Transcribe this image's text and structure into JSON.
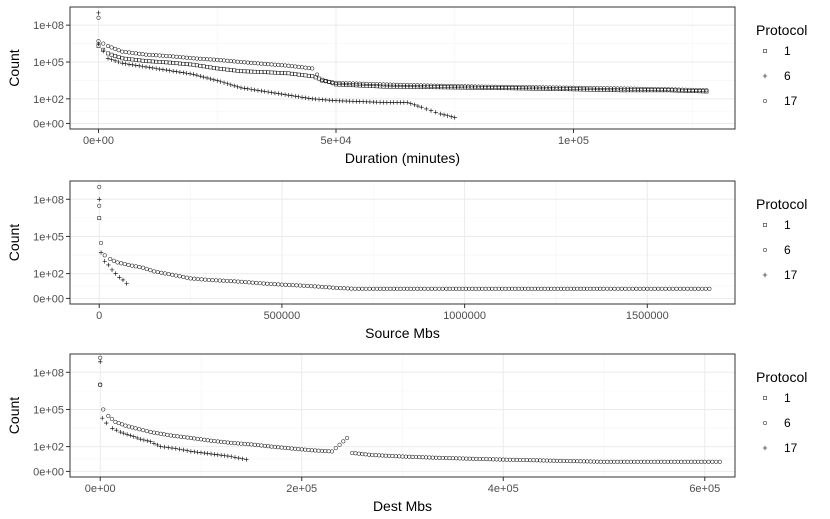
{
  "chart_data": [
    {
      "type": "scatter",
      "xlabel": "Duration (minutes)",
      "ylabel": "Count",
      "y_scale": "pseudo-log",
      "xlim": [
        -6000,
        134000
      ],
      "x_ticks": [
        0,
        50000,
        100000
      ],
      "x_tick_labels": [
        "0e+00",
        "5e+04",
        "1e+05"
      ],
      "y_ticks": [
        0,
        100,
        100000,
        100000000
      ],
      "y_tick_labels": [
        "0e+00",
        "1e+02",
        "1e+05",
        "1e+08"
      ],
      "grid": true,
      "legend": {
        "title": "Protocol",
        "placement": "right",
        "entries": [
          "1",
          "6",
          "17"
        ],
        "shapes": [
          "square",
          "plus",
          "circle"
        ]
      },
      "series": [
        {
          "name": "1",
          "shape": "square",
          "points": [
            [
              0,
              2000000
            ],
            [
              2000,
              500000
            ],
            [
              5000,
              200000
            ],
            [
              10000,
              120000
            ],
            [
              15000,
              90000
            ],
            [
              20000,
              60000
            ],
            [
              25000,
              30000
            ],
            [
              30000,
              18000
            ],
            [
              35000,
              15000
            ],
            [
              40000,
              12000
            ],
            [
              45000,
              7000
            ],
            [
              50000,
              1500
            ],
            [
              60000,
              1000
            ],
            [
              70000,
              900
            ],
            [
              80000,
              800
            ],
            [
              90000,
              700
            ],
            [
              100000,
              600
            ],
            [
              110000,
              500
            ],
            [
              120000,
              500
            ],
            [
              128000,
              400
            ]
          ]
        },
        {
          "name": "6",
          "shape": "plus",
          "points": [
            [
              0,
              1000000000
            ],
            [
              0,
              3000000
            ],
            [
              2000,
              200000
            ],
            [
              5000,
              80000
            ],
            [
              10000,
              40000
            ],
            [
              15000,
              20000
            ],
            [
              20000,
              10000
            ],
            [
              25000,
              3000
            ],
            [
              30000,
              800
            ],
            [
              35000,
              400
            ],
            [
              40000,
              200
            ],
            [
              45000,
              100
            ],
            [
              50000,
              70
            ],
            [
              55000,
              60
            ],
            [
              60000,
              50
            ],
            [
              65000,
              50
            ],
            [
              68000,
              20
            ],
            [
              70000,
              10
            ],
            [
              72000,
              5
            ],
            [
              75000,
              2
            ]
          ]
        },
        {
          "name": "17",
          "shape": "circle",
          "points": [
            [
              0,
              400000000
            ],
            [
              0,
              5000000
            ],
            [
              2000,
              2000000
            ],
            [
              5000,
              700000
            ],
            [
              10000,
              400000
            ],
            [
              15000,
              300000
            ],
            [
              20000,
              200000
            ],
            [
              25000,
              150000
            ],
            [
              30000,
              100000
            ],
            [
              35000,
              70000
            ],
            [
              40000,
              50000
            ],
            [
              45000,
              30000
            ],
            [
              47000,
              3000
            ],
            [
              50000,
              2000
            ],
            [
              60000,
              1500
            ],
            [
              70000,
              1200
            ],
            [
              80000,
              1000
            ],
            [
              90000,
              900
            ],
            [
              100000,
              800
            ],
            [
              110000,
              700
            ],
            [
              120000,
              600
            ],
            [
              128000,
              500
            ]
          ]
        }
      ]
    },
    {
      "type": "scatter",
      "xlabel": "Source Mbs",
      "ylabel": "Count",
      "y_scale": "pseudo-log",
      "xlim": [
        -80000,
        1740000
      ],
      "x_ticks": [
        0,
        500000,
        1000000,
        1500000
      ],
      "x_tick_labels": [
        "0",
        "500000",
        "1000000",
        "1500000"
      ],
      "y_ticks": [
        0,
        100,
        100000,
        100000000
      ],
      "y_tick_labels": [
        "0e+00",
        "1e+02",
        "1e+05",
        "1e+08"
      ],
      "grid": true,
      "legend": {
        "title": "Protocol",
        "placement": "right",
        "entries": [
          "1",
          "6",
          "17"
        ],
        "shapes": [
          "square",
          "circle",
          "plus"
        ]
      },
      "series": [
        {
          "name": "1",
          "shape": "square",
          "points": [
            [
              0,
              3000000
            ]
          ]
        },
        {
          "name": "6",
          "shape": "circle",
          "points": [
            [
              0,
              1000000000
            ],
            [
              0,
              30000000
            ],
            [
              5000,
              30000
            ],
            [
              15000,
              3000
            ],
            [
              30000,
              1500
            ],
            [
              50000,
              800
            ],
            [
              80000,
              500
            ],
            [
              120000,
              300
            ],
            [
              150000,
              150
            ],
            [
              200000,
              80
            ],
            [
              250000,
              40
            ],
            [
              300000,
              30
            ],
            [
              350000,
              25
            ],
            [
              400000,
              20
            ],
            [
              450000,
              15
            ],
            [
              500000,
              12
            ],
            [
              550000,
              10
            ],
            [
              600000,
              8
            ],
            [
              650000,
              6
            ],
            [
              700000,
              5
            ],
            [
              760000,
              5
            ],
            [
              880000,
              5
            ],
            [
              950000,
              5
            ],
            [
              1030000,
              5
            ],
            [
              1130000,
              5
            ],
            [
              1210000,
              5
            ],
            [
              1380000,
              5
            ],
            [
              1450000,
              5
            ],
            [
              1520000,
              5
            ],
            [
              1580000,
              5
            ],
            [
              1640000,
              5
            ],
            [
              1670000,
              5
            ]
          ]
        },
        {
          "name": "17",
          "shape": "plus",
          "points": [
            [
              0,
              100000000
            ],
            [
              5000,
              5000
            ],
            [
              15000,
              1000
            ],
            [
              25000,
              500
            ],
            [
              35000,
              200
            ],
            [
              45000,
              100
            ],
            [
              55000,
              50
            ],
            [
              65000,
              30
            ],
            [
              75000,
              15
            ]
          ]
        }
      ]
    },
    {
      "type": "scatter",
      "xlabel": "Dest Mbs",
      "ylabel": "Count",
      "y_scale": "pseudo-log",
      "xlim": [
        -30000,
        630000
      ],
      "x_ticks": [
        0,
        200000,
        400000,
        600000
      ],
      "x_tick_labels": [
        "0e+00",
        "2e+05",
        "4e+05",
        "6e+05"
      ],
      "y_ticks": [
        0,
        100,
        100000,
        100000000
      ],
      "y_tick_labels": [
        "0e+00",
        "1e+02",
        "1e+05",
        "1e+08"
      ],
      "grid": true,
      "legend": {
        "title": "Protocol",
        "placement": "right",
        "entries": [
          "1",
          "6",
          "17"
        ],
        "shapes": [
          "square",
          "circle",
          "plus"
        ]
      },
      "series": [
        {
          "name": "1",
          "shape": "square",
          "points": [
            [
              0,
              10000000
            ]
          ]
        },
        {
          "name": "6",
          "shape": "circle",
          "points": [
            [
              0,
              1500000000
            ],
            [
              0,
              10000000
            ],
            [
              3000,
              100000
            ],
            [
              8000,
              30000
            ],
            [
              15000,
              10000
            ],
            [
              25000,
              5000
            ],
            [
              35000,
              3000
            ],
            [
              50000,
              1500
            ],
            [
              70000,
              800
            ],
            [
              90000,
              500
            ],
            [
              110000,
              300
            ],
            [
              130000,
              200
            ],
            [
              150000,
              150
            ],
            [
              170000,
              100
            ],
            [
              190000,
              70
            ],
            [
              210000,
              50
            ],
            [
              230000,
              40
            ],
            [
              245000,
              500
            ],
            [
              250000,
              30
            ],
            [
              270000,
              20
            ],
            [
              300000,
              15
            ],
            [
              330000,
              12
            ],
            [
              360000,
              10
            ],
            [
              400000,
              8
            ],
            [
              430000,
              7
            ],
            [
              460000,
              6
            ],
            [
              500000,
              5
            ],
            [
              530000,
              5
            ],
            [
              560000,
              5
            ],
            [
              580000,
              5
            ],
            [
              600000,
              5
            ],
            [
              615000,
              5
            ]
          ]
        },
        {
          "name": "17",
          "shape": "plus",
          "points": [
            [
              0,
              700000000
            ],
            [
              2000,
              20000
            ],
            [
              6000,
              8000
            ],
            [
              12000,
              3000
            ],
            [
              20000,
              1500
            ],
            [
              30000,
              800
            ],
            [
              40000,
              400
            ],
            [
              50000,
              250
            ],
            [
              60000,
              100
            ],
            [
              75000,
              70
            ],
            [
              90000,
              40
            ],
            [
              110000,
              25
            ],
            [
              130000,
              15
            ],
            [
              145000,
              8
            ]
          ]
        }
      ]
    }
  ]
}
